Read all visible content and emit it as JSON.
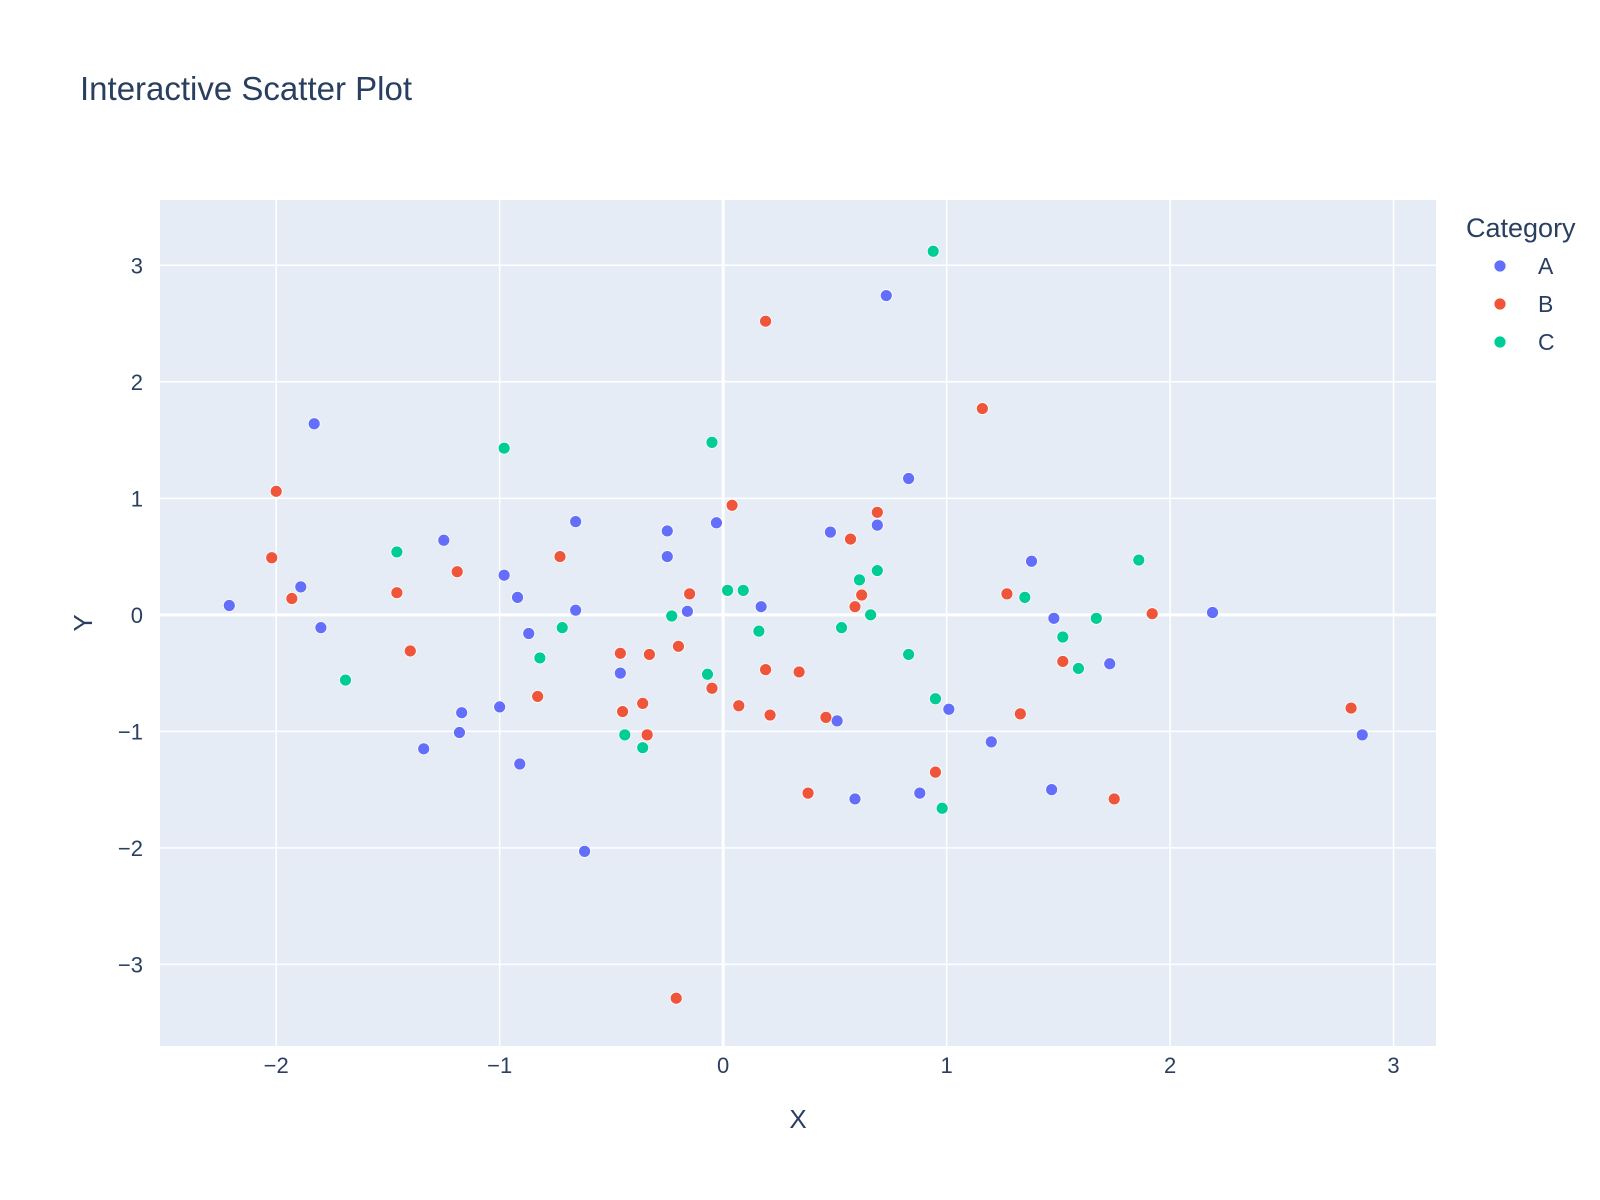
{
  "chart_data": {
    "type": "scatter",
    "title": "Interactive Scatter Plot",
    "xlabel": "X",
    "ylabel": "Y",
    "xlim": [
      -2.52,
      3.19
    ],
    "ylim": [
      -3.7,
      3.56
    ],
    "x_ticks": [
      {
        "value": -2,
        "label": "−2"
      },
      {
        "value": -1,
        "label": "−1"
      },
      {
        "value": 0,
        "label": "0"
      },
      {
        "value": 1,
        "label": "1"
      },
      {
        "value": 2,
        "label": "2"
      },
      {
        "value": 3,
        "label": "3"
      }
    ],
    "y_ticks": [
      {
        "value": 3,
        "label": "3"
      },
      {
        "value": 2,
        "label": "2"
      },
      {
        "value": 1,
        "label": "1"
      },
      {
        "value": 0,
        "label": "0"
      },
      {
        "value": -1,
        "label": "−1"
      },
      {
        "value": -2,
        "label": "−2"
      },
      {
        "value": -3,
        "label": "−3"
      }
    ],
    "grid": true,
    "legend_title": "Category",
    "legend_position": "top-right",
    "plot_background": "#e5ecf6",
    "series": [
      {
        "name": "A",
        "color": "#636efa",
        "points": [
          [
            -2.21,
            0.08
          ],
          [
            -1.83,
            1.64
          ],
          [
            -1.89,
            0.24
          ],
          [
            -1.8,
            -0.11
          ],
          [
            -1.25,
            0.64
          ],
          [
            -1.34,
            -1.15
          ],
          [
            -1.17,
            -0.84
          ],
          [
            -1.18,
            -1.01
          ],
          [
            -0.98,
            0.34
          ],
          [
            -0.92,
            0.15
          ],
          [
            -0.87,
            -0.16
          ],
          [
            -1.0,
            -0.79
          ],
          [
            -0.91,
            -1.28
          ],
          [
            -0.66,
            0.8
          ],
          [
            -0.66,
            0.04
          ],
          [
            -0.62,
            -2.03
          ],
          [
            -0.46,
            -0.5
          ],
          [
            -0.25,
            0.72
          ],
          [
            -0.25,
            0.5
          ],
          [
            -0.16,
            0.03
          ],
          [
            -0.03,
            0.79
          ],
          [
            0.17,
            0.07
          ],
          [
            0.48,
            0.71
          ],
          [
            0.51,
            -0.91
          ],
          [
            0.69,
            0.77
          ],
          [
            0.73,
            2.74
          ],
          [
            0.59,
            -1.58
          ],
          [
            0.83,
            1.17
          ],
          [
            0.88,
            -1.53
          ],
          [
            1.01,
            -0.81
          ],
          [
            1.2,
            -1.09
          ],
          [
            1.38,
            0.46
          ],
          [
            1.48,
            -0.03
          ],
          [
            1.47,
            -1.5
          ],
          [
            1.73,
            -0.42
          ],
          [
            2.19,
            0.02
          ],
          [
            2.86,
            -1.03
          ]
        ]
      },
      {
        "name": "B",
        "color": "#ef553b",
        "points": [
          [
            -2.0,
            1.06
          ],
          [
            -2.02,
            0.49
          ],
          [
            -1.93,
            0.14
          ],
          [
            -1.46,
            0.19
          ],
          [
            -1.4,
            -0.31
          ],
          [
            -1.19,
            0.37
          ],
          [
            -0.83,
            -0.7
          ],
          [
            -0.73,
            0.5
          ],
          [
            -0.46,
            -0.33
          ],
          [
            -0.45,
            -0.83
          ],
          [
            -0.33,
            -0.34
          ],
          [
            -0.36,
            -0.76
          ],
          [
            -0.34,
            -1.03
          ],
          [
            -0.2,
            -0.27
          ],
          [
            -0.15,
            0.18
          ],
          [
            -0.21,
            -3.29
          ],
          [
            -0.05,
            -0.63
          ],
          [
            0.04,
            0.94
          ],
          [
            0.07,
            -0.78
          ],
          [
            0.19,
            2.52
          ],
          [
            0.19,
            -0.47
          ],
          [
            0.21,
            -0.86
          ],
          [
            0.34,
            -0.49
          ],
          [
            0.38,
            -1.53
          ],
          [
            0.46,
            -0.88
          ],
          [
            0.57,
            0.65
          ],
          [
            0.59,
            0.07
          ],
          [
            0.62,
            0.17
          ],
          [
            0.69,
            0.88
          ],
          [
            0.95,
            -1.35
          ],
          [
            1.16,
            1.77
          ],
          [
            1.27,
            0.18
          ],
          [
            1.33,
            -0.85
          ],
          [
            1.52,
            -0.4
          ],
          [
            1.75,
            -1.58
          ],
          [
            1.92,
            0.01
          ],
          [
            2.81,
            -0.8
          ]
        ]
      },
      {
        "name": "C",
        "color": "#00cc96",
        "points": [
          [
            -1.69,
            -0.56
          ],
          [
            -1.46,
            0.54
          ],
          [
            -0.98,
            1.43
          ],
          [
            -0.82,
            -0.37
          ],
          [
            -0.72,
            -0.11
          ],
          [
            -0.44,
            -1.03
          ],
          [
            -0.36,
            -1.14
          ],
          [
            -0.23,
            -0.01
          ],
          [
            -0.07,
            -0.51
          ],
          [
            -0.05,
            1.48
          ],
          [
            0.02,
            0.21
          ],
          [
            0.09,
            0.21
          ],
          [
            0.16,
            -0.14
          ],
          [
            0.53,
            -0.11
          ],
          [
            0.61,
            0.3
          ],
          [
            0.66,
            0.0
          ],
          [
            0.69,
            0.38
          ],
          [
            0.83,
            -0.34
          ],
          [
            0.94,
            3.12
          ],
          [
            0.95,
            -0.72
          ],
          [
            0.98,
            -1.66
          ],
          [
            1.35,
            0.15
          ],
          [
            1.52,
            -0.19
          ],
          [
            1.59,
            -0.46
          ],
          [
            1.67,
            -0.03
          ],
          [
            1.86,
            0.47
          ]
        ]
      }
    ]
  }
}
